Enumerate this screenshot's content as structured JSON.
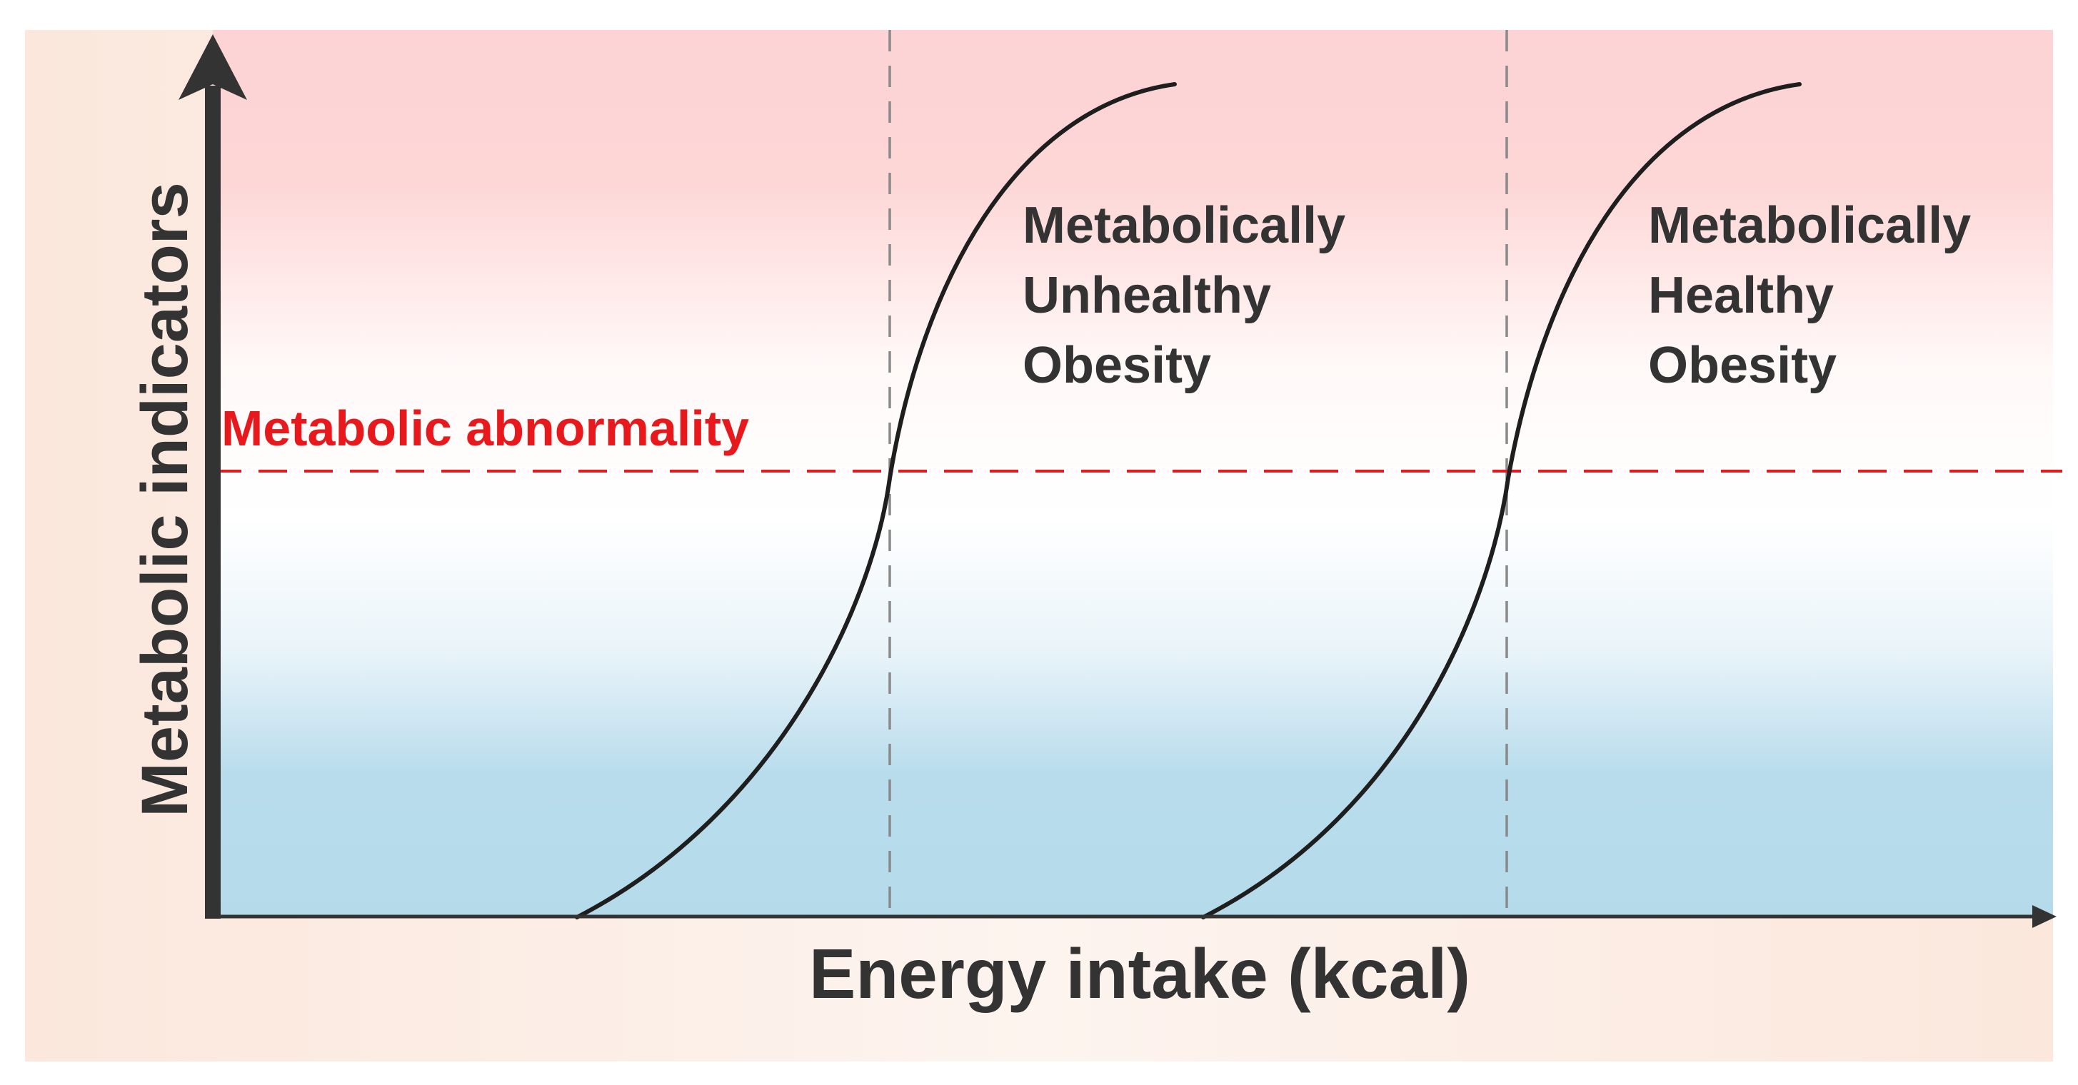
{
  "diagram": {
    "y_axis_label": "Metabolic indicators",
    "x_axis_label": "Energy intake (kcal)",
    "threshold_label": "Metabolic abnormality",
    "curve_unhealthy": {
      "line1": "Metabolically",
      "line2": "Unhealthy",
      "line3": "Obesity"
    },
    "curve_healthy": {
      "line1": "Metabolically",
      "line2": "Healthy",
      "line3": "Obesity"
    }
  },
  "colors": {
    "top_zone": "#fdd3d5",
    "bottom_zone": "#b6dcec",
    "outer_frame": "#fbe9df",
    "axis": "#333333",
    "curve": "#1e1e1e",
    "threshold": "#e8191c",
    "guide": "#8a8a8a",
    "text": "#333333"
  }
}
